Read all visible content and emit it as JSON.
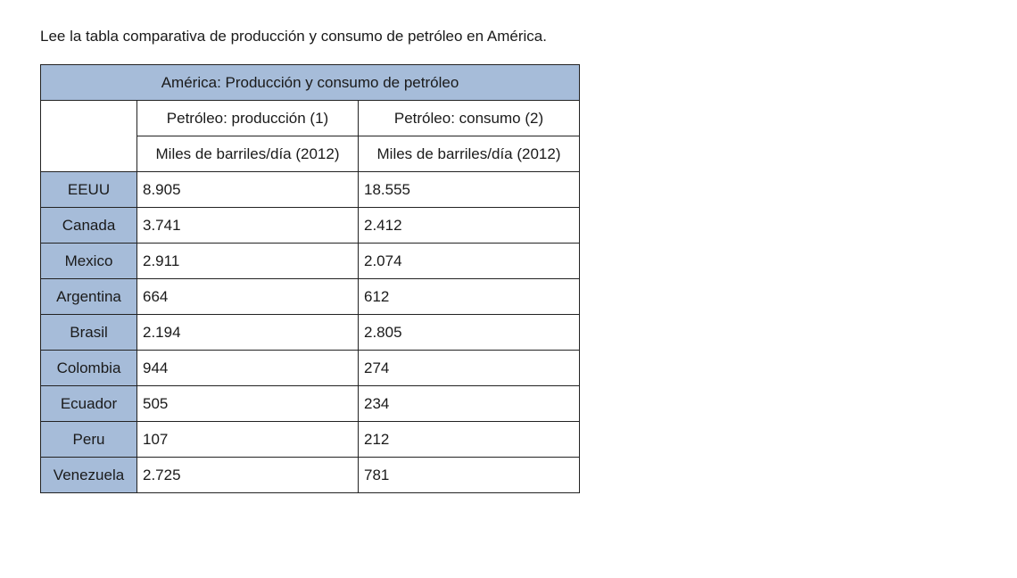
{
  "intro_text": "Lee la tabla comparativa de producción y consumo de petróleo en América.",
  "table": {
    "title": "América: Producción y consumo de petróleo",
    "header": {
      "production": "Petróleo: producción (1)",
      "consumption": "Petróleo: consumo (2)",
      "production_unit": "Miles de barriles/día (2012)",
      "consumption_unit": "Miles de barriles/día (2012)"
    },
    "rows": [
      {
        "country": "EEUU",
        "production": "8.905",
        "consumption": "18.555"
      },
      {
        "country": "Canada",
        "production": "3.741",
        "consumption": "2.412"
      },
      {
        "country": "Mexico",
        "production": "2.911",
        "consumption": "2.074"
      },
      {
        "country": "Argentina",
        "production": "664",
        "consumption": "612"
      },
      {
        "country": "Brasil",
        "production": "2.194",
        "consumption": "2.805"
      },
      {
        "country": "Colombia",
        "production": "944",
        "consumption": "274"
      },
      {
        "country": "Ecuador",
        "production": "505",
        "consumption": "234"
      },
      {
        "country": "Peru",
        "production": "107",
        "consumption": "212"
      },
      {
        "country": "Venezuela",
        "production": "2.725",
        "consumption": "781"
      }
    ]
  },
  "colors": {
    "highlight_fill": "#a6bcd9",
    "border": "#222222"
  }
}
